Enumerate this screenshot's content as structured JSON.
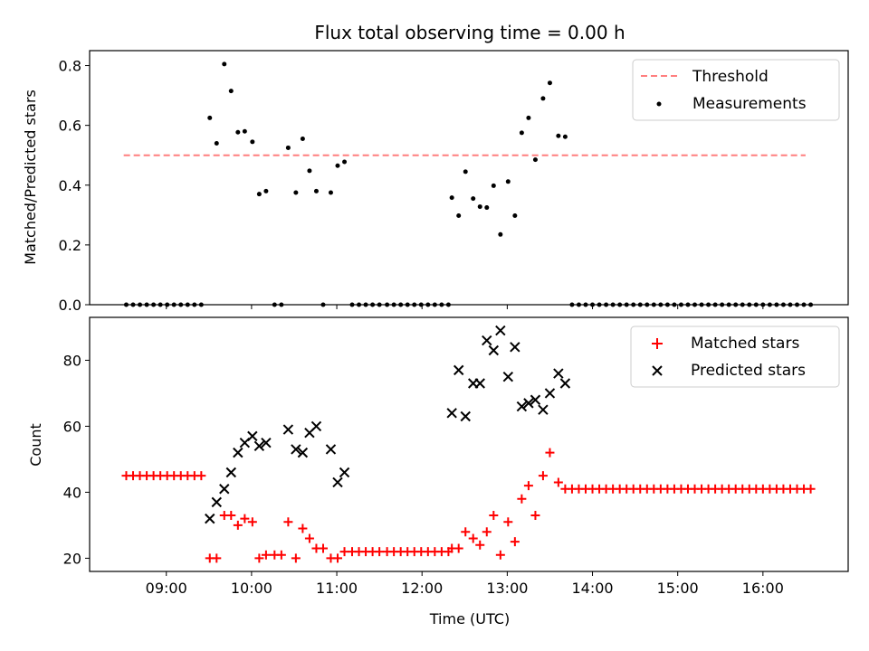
{
  "chart_data": [
    {
      "type": "scatter",
      "title": "Flux total observing time = 0.00 h",
      "xlabel": "",
      "ylabel": "Matched/Predicted stars",
      "x_unit": "hour UTC",
      "xlim": [
        8.1,
        17.0
      ],
      "ylim": [
        0.0,
        0.85
      ],
      "yticks": [
        "0.0",
        "0.2",
        "0.4",
        "0.6",
        "0.8"
      ],
      "ytick_values": [
        0.0,
        0.2,
        0.4,
        0.6,
        0.8
      ],
      "xtick_values": [
        9,
        10,
        11,
        12,
        13,
        14,
        15,
        16
      ],
      "legend_position": "upper right",
      "series": [
        {
          "name": "Threshold",
          "kind": "line",
          "style": "dashed",
          "color": "#ff7f7f",
          "x": [
            8.5,
            16.5
          ],
          "y": [
            0.5,
            0.5
          ]
        },
        {
          "name": "Measurements",
          "kind": "scatter",
          "color": "#000000",
          "points": [
            [
              8.53,
              0
            ],
            [
              8.61,
              0
            ],
            [
              8.69,
              0
            ],
            [
              8.77,
              0
            ],
            [
              8.85,
              0
            ],
            [
              8.93,
              0
            ],
            [
              9.01,
              0
            ],
            [
              9.09,
              0
            ],
            [
              9.17,
              0
            ],
            [
              9.25,
              0
            ],
            [
              9.33,
              0
            ],
            [
              9.41,
              0
            ],
            [
              9.51,
              0.625
            ],
            [
              9.59,
              0.54
            ],
            [
              9.68,
              0.805
            ],
            [
              9.76,
              0.715
            ],
            [
              9.84,
              0.577
            ],
            [
              9.92,
              0.58
            ],
            [
              10.01,
              0.545
            ],
            [
              10.09,
              0.37
            ],
            [
              10.17,
              0.38
            ],
            [
              10.27,
              0
            ],
            [
              10.35,
              0
            ],
            [
              10.43,
              0.525
            ],
            [
              10.52,
              0.375
            ],
            [
              10.6,
              0.555
            ],
            [
              10.68,
              0.448
            ],
            [
              10.76,
              0.38
            ],
            [
              10.84,
              0
            ],
            [
              10.93,
              0.375
            ],
            [
              11.01,
              0.465
            ],
            [
              11.09,
              0.478
            ],
            [
              11.18,
              0
            ],
            [
              11.26,
              0
            ],
            [
              11.34,
              0
            ],
            [
              11.42,
              0
            ],
            [
              11.5,
              0
            ],
            [
              11.59,
              0
            ],
            [
              11.67,
              0
            ],
            [
              11.75,
              0
            ],
            [
              11.83,
              0
            ],
            [
              11.91,
              0
            ],
            [
              11.99,
              0
            ],
            [
              12.07,
              0
            ],
            [
              12.15,
              0
            ],
            [
              12.23,
              0
            ],
            [
              12.31,
              0
            ],
            [
              12.35,
              0.358
            ],
            [
              12.43,
              0.298
            ],
            [
              12.51,
              0.445
            ],
            [
              12.6,
              0.355
            ],
            [
              12.68,
              0.328
            ],
            [
              12.76,
              0.325
            ],
            [
              12.84,
              0.398
            ],
            [
              12.92,
              0.235
            ],
            [
              13.01,
              0.412
            ],
            [
              13.09,
              0.298
            ],
            [
              13.17,
              0.575
            ],
            [
              13.25,
              0.625
            ],
            [
              13.33,
              0.485
            ],
            [
              13.42,
              0.69
            ],
            [
              13.5,
              0.742
            ],
            [
              13.6,
              0.565
            ],
            [
              13.68,
              0.562
            ],
            [
              13.76,
              0
            ],
            [
              13.84,
              0
            ],
            [
              13.92,
              0
            ],
            [
              14.0,
              0
            ],
            [
              14.08,
              0
            ],
            [
              14.16,
              0
            ],
            [
              14.24,
              0
            ],
            [
              14.32,
              0
            ],
            [
              14.4,
              0
            ],
            [
              14.48,
              0
            ],
            [
              14.56,
              0
            ],
            [
              14.64,
              0
            ],
            [
              14.72,
              0
            ],
            [
              14.8,
              0
            ],
            [
              14.88,
              0
            ],
            [
              14.96,
              0
            ],
            [
              15.04,
              0
            ],
            [
              15.12,
              0
            ],
            [
              15.2,
              0
            ],
            [
              15.28,
              0
            ],
            [
              15.36,
              0
            ],
            [
              15.44,
              0
            ],
            [
              15.52,
              0
            ],
            [
              15.6,
              0
            ],
            [
              15.68,
              0
            ],
            [
              15.76,
              0
            ],
            [
              15.84,
              0
            ],
            [
              15.92,
              0
            ],
            [
              16.0,
              0
            ],
            [
              16.08,
              0
            ],
            [
              16.16,
              0
            ],
            [
              16.24,
              0
            ],
            [
              16.32,
              0
            ],
            [
              16.4,
              0
            ],
            [
              16.48,
              0
            ],
            [
              16.56,
              0
            ]
          ]
        }
      ]
    },
    {
      "type": "scatter",
      "title": "",
      "xlabel": "Time (UTC)",
      "ylabel": "Count",
      "x_unit": "hour UTC",
      "xlim": [
        8.1,
        17.0
      ],
      "ylim": [
        16,
        93
      ],
      "yticks": [
        "20",
        "40",
        "60",
        "80"
      ],
      "ytick_values": [
        20,
        40,
        60,
        80
      ],
      "xticks": [
        "09:00",
        "10:00",
        "11:00",
        "12:00",
        "13:00",
        "14:00",
        "15:00",
        "16:00"
      ],
      "xtick_values": [
        9,
        10,
        11,
        12,
        13,
        14,
        15,
        16
      ],
      "legend_position": "upper right",
      "series": [
        {
          "name": "Matched stars",
          "kind": "scatter",
          "marker": "plus",
          "color": "#ff0000",
          "points": [
            [
              8.53,
              45
            ],
            [
              8.61,
              45
            ],
            [
              8.69,
              45
            ],
            [
              8.77,
              45
            ],
            [
              8.85,
              45
            ],
            [
              8.93,
              45
            ],
            [
              9.01,
              45
            ],
            [
              9.09,
              45
            ],
            [
              9.17,
              45
            ],
            [
              9.25,
              45
            ],
            [
              9.33,
              45
            ],
            [
              9.41,
              45
            ],
            [
              9.51,
              20
            ],
            [
              9.59,
              20
            ],
            [
              9.68,
              33
            ],
            [
              9.76,
              33
            ],
            [
              9.84,
              30
            ],
            [
              9.92,
              32
            ],
            [
              10.01,
              31
            ],
            [
              10.09,
              20
            ],
            [
              10.17,
              21
            ],
            [
              10.27,
              21
            ],
            [
              10.35,
              21
            ],
            [
              10.43,
              31
            ],
            [
              10.52,
              20
            ],
            [
              10.6,
              29
            ],
            [
              10.68,
              26
            ],
            [
              10.76,
              23
            ],
            [
              10.84,
              23
            ],
            [
              10.93,
              20
            ],
            [
              11.01,
              20
            ],
            [
              11.09,
              22
            ],
            [
              11.18,
              22
            ],
            [
              11.26,
              22
            ],
            [
              11.34,
              22
            ],
            [
              11.42,
              22
            ],
            [
              11.5,
              22
            ],
            [
              11.59,
              22
            ],
            [
              11.67,
              22
            ],
            [
              11.75,
              22
            ],
            [
              11.83,
              22
            ],
            [
              11.91,
              22
            ],
            [
              11.99,
              22
            ],
            [
              12.07,
              22
            ],
            [
              12.15,
              22
            ],
            [
              12.23,
              22
            ],
            [
              12.31,
              22
            ],
            [
              12.35,
              23
            ],
            [
              12.43,
              23
            ],
            [
              12.51,
              28
            ],
            [
              12.6,
              26
            ],
            [
              12.68,
              24
            ],
            [
              12.76,
              28
            ],
            [
              12.84,
              33
            ],
            [
              12.92,
              21
            ],
            [
              13.01,
              31
            ],
            [
              13.09,
              25
            ],
            [
              13.17,
              38
            ],
            [
              13.25,
              42
            ],
            [
              13.33,
              33
            ],
            [
              13.42,
              45
            ],
            [
              13.5,
              52
            ],
            [
              13.6,
              43
            ],
            [
              13.68,
              41
            ],
            [
              13.76,
              41
            ],
            [
              13.84,
              41
            ],
            [
              13.92,
              41
            ],
            [
              14.0,
              41
            ],
            [
              14.08,
              41
            ],
            [
              14.16,
              41
            ],
            [
              14.24,
              41
            ],
            [
              14.32,
              41
            ],
            [
              14.4,
              41
            ],
            [
              14.48,
              41
            ],
            [
              14.56,
              41
            ],
            [
              14.64,
              41
            ],
            [
              14.72,
              41
            ],
            [
              14.8,
              41
            ],
            [
              14.88,
              41
            ],
            [
              14.96,
              41
            ],
            [
              15.04,
              41
            ],
            [
              15.12,
              41
            ],
            [
              15.2,
              41
            ],
            [
              15.28,
              41
            ],
            [
              15.36,
              41
            ],
            [
              15.44,
              41
            ],
            [
              15.52,
              41
            ],
            [
              15.6,
              41
            ],
            [
              15.68,
              41
            ],
            [
              15.76,
              41
            ],
            [
              15.84,
              41
            ],
            [
              15.92,
              41
            ],
            [
              16.0,
              41
            ],
            [
              16.08,
              41
            ],
            [
              16.16,
              41
            ],
            [
              16.24,
              41
            ],
            [
              16.32,
              41
            ],
            [
              16.4,
              41
            ],
            [
              16.48,
              41
            ],
            [
              16.56,
              41
            ]
          ]
        },
        {
          "name": "Predicted stars",
          "kind": "scatter",
          "marker": "x",
          "color": "#000000",
          "points": [
            [
              9.51,
              32
            ],
            [
              9.59,
              37
            ],
            [
              9.68,
              41
            ],
            [
              9.76,
              46
            ],
            [
              9.84,
              52
            ],
            [
              9.92,
              55
            ],
            [
              10.01,
              57
            ],
            [
              10.09,
              54
            ],
            [
              10.17,
              55
            ],
            [
              10.43,
              59
            ],
            [
              10.52,
              53
            ],
            [
              10.6,
              52
            ],
            [
              10.68,
              58
            ],
            [
              10.76,
              60
            ],
            [
              10.93,
              53
            ],
            [
              11.01,
              43
            ],
            [
              11.09,
              46
            ],
            [
              12.35,
              64
            ],
            [
              12.43,
              77
            ],
            [
              12.51,
              63
            ],
            [
              12.6,
              73
            ],
            [
              12.68,
              73
            ],
            [
              12.76,
              86
            ],
            [
              12.84,
              83
            ],
            [
              12.92,
              89
            ],
            [
              13.01,
              75
            ],
            [
              13.09,
              84
            ],
            [
              13.17,
              66
            ],
            [
              13.25,
              67
            ],
            [
              13.33,
              68
            ],
            [
              13.42,
              65
            ],
            [
              13.5,
              70
            ],
            [
              13.6,
              76
            ],
            [
              13.68,
              73
            ]
          ]
        }
      ]
    }
  ]
}
